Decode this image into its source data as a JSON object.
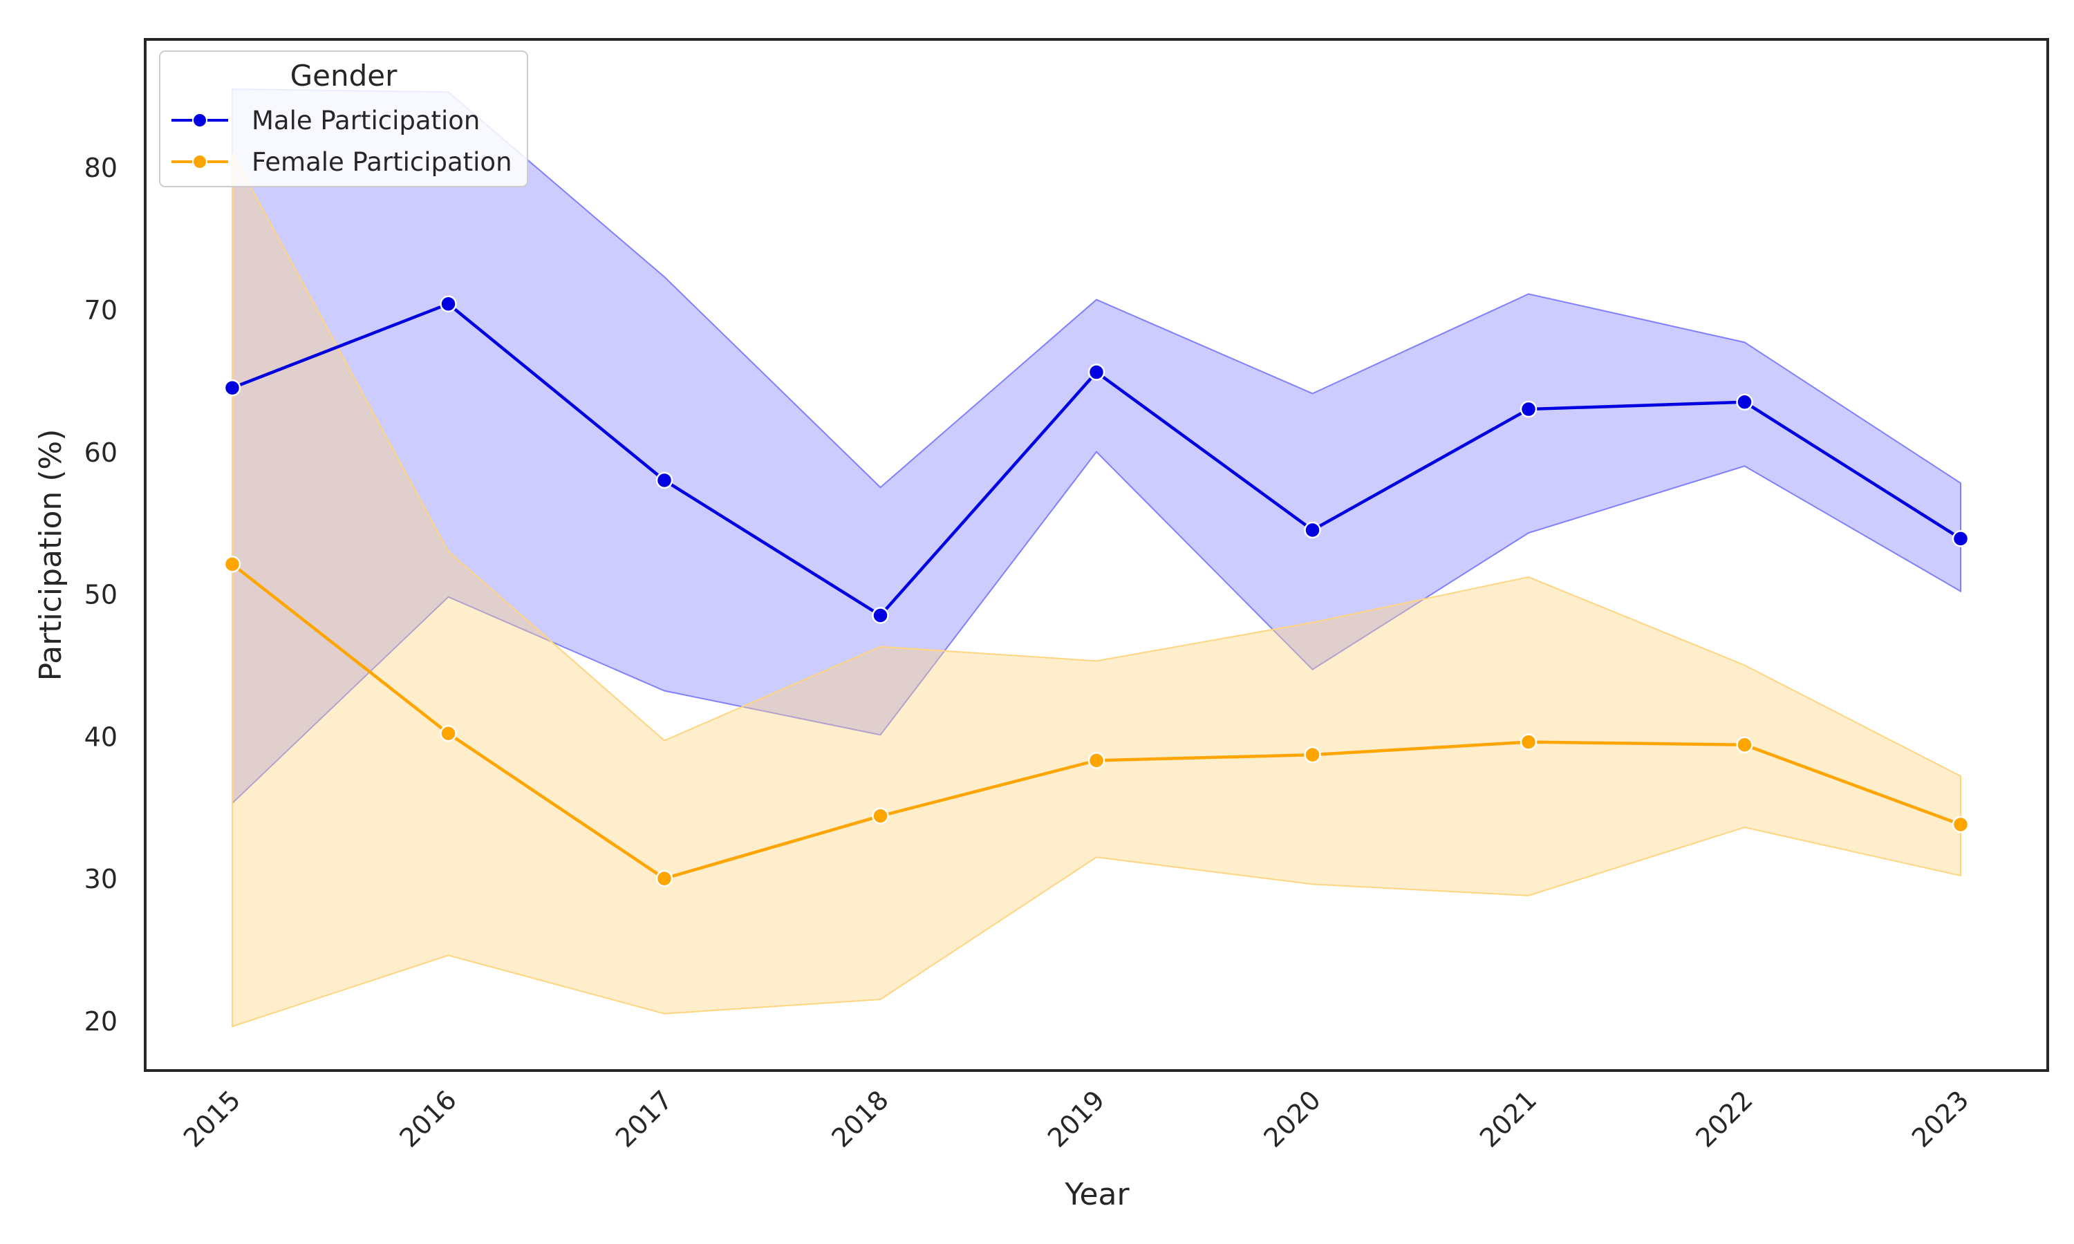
{
  "chart_data": {
    "type": "line",
    "title": "",
    "xlabel": "Year",
    "ylabel": "Participation (%)",
    "x": [
      "2015",
      "2016",
      "2017",
      "2018",
      "2019",
      "2020",
      "2021",
      "2022",
      "2023"
    ],
    "y_ticks": [
      "20",
      "30",
      "40",
      "50",
      "60",
      "70",
      "80"
    ],
    "ylim": [
      16.5,
      89
    ],
    "grid": false,
    "legend": {
      "title": "Gender",
      "placement": "top-left"
    },
    "series": [
      {
        "name": "Male Participation",
        "color": "#0000e0",
        "band_color": "#8080ff",
        "values": [
          64.5,
          70.4,
          58.0,
          48.5,
          65.6,
          54.5,
          63.0,
          63.5,
          53.9
        ],
        "ci_lower": [
          35.3,
          49.8,
          43.2,
          40.1,
          60.0,
          44.7,
          54.3,
          59.0,
          50.2
        ],
        "ci_upper": [
          85.5,
          85.3,
          72.3,
          57.5,
          70.7,
          64.1,
          71.1,
          67.7,
          57.8
        ]
      },
      {
        "name": "Female Participation",
        "color": "#ffa500",
        "band_color": "#ffd580",
        "values": [
          52.1,
          40.2,
          30.0,
          34.4,
          38.3,
          38.7,
          39.6,
          39.4,
          33.8
        ],
        "ci_lower": [
          19.6,
          24.6,
          20.5,
          21.5,
          31.5,
          29.6,
          28.8,
          33.6,
          30.2
        ],
        "ci_upper": [
          81.0,
          53.0,
          39.7,
          46.3,
          45.3,
          48.0,
          51.2,
          45.0,
          37.2
        ]
      }
    ]
  }
}
